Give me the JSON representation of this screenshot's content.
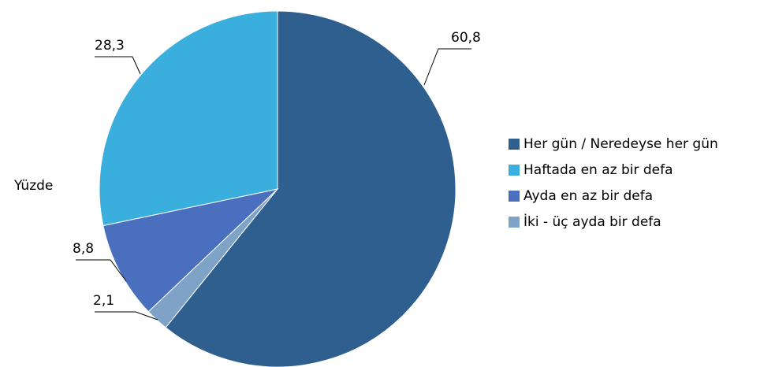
{
  "chart_data": {
    "type": "pie",
    "label": "Yüzde",
    "categories": [
      "Her gün / Neredeyse her gün",
      "Haftada en az bir defa",
      "Ayda en az bir defa",
      "İki - üç ayda bir defa"
    ],
    "values": [
      60.8,
      28.3,
      8.8,
      2.1
    ],
    "value_labels": [
      "60,8",
      "28,3",
      "8,8",
      "2,1"
    ],
    "colors": [
      "#2e5f8e",
      "#3aaedc",
      "#4a6fbf",
      "#7fa3c6"
    ],
    "legend": "right"
  }
}
